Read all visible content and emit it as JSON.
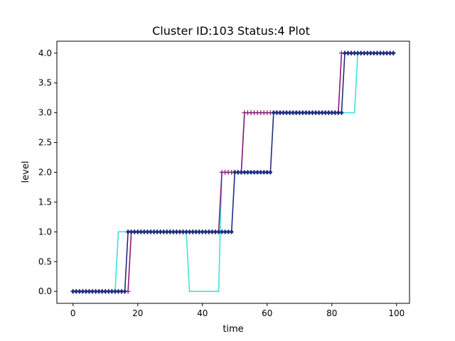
{
  "chart_data": {
    "type": "line",
    "title": "Cluster ID:103 Status:4 Plot",
    "xlabel": "time",
    "ylabel": "level",
    "xlim": [
      -5,
      104
    ],
    "ylim": [
      -0.2,
      4.2
    ],
    "xticks": [
      0,
      20,
      40,
      60,
      80,
      100
    ],
    "yticks": [
      0.0,
      0.5,
      1.0,
      1.5,
      2.0,
      2.5,
      3.0,
      3.5,
      4.0
    ],
    "xtick_labels": [
      "0",
      "20",
      "40",
      "60",
      "80",
      "100"
    ],
    "ytick_labels": [
      "0.0",
      "0.5",
      "1.0",
      "1.5",
      "2.0",
      "2.5",
      "3.0",
      "3.5",
      "4.0"
    ],
    "grid": false,
    "series": [
      {
        "color": "#40e0e0",
        "marker": "none",
        "x": [
          0,
          13,
          14,
          35,
          36,
          45,
          46,
          52,
          53,
          87,
          88,
          99
        ],
        "y": [
          0,
          0,
          1,
          1,
          0,
          0,
          2,
          2,
          3,
          3,
          4,
          4
        ]
      },
      {
        "color": "#8b1a7a",
        "marker": "plus",
        "x": [
          0,
          17,
          18,
          45,
          46,
          52,
          53,
          61,
          62,
          82,
          83,
          99
        ],
        "y": [
          0,
          0,
          1,
          1,
          2,
          2,
          3,
          3,
          3,
          3,
          4,
          4
        ]
      },
      {
        "color": "#1f2f80",
        "marker": "diamond",
        "x": [
          0,
          16,
          17,
          49,
          50,
          61,
          62,
          83,
          84,
          99
        ],
        "y": [
          0,
          0,
          1,
          1,
          2,
          2,
          3,
          3,
          4,
          4
        ]
      }
    ]
  }
}
